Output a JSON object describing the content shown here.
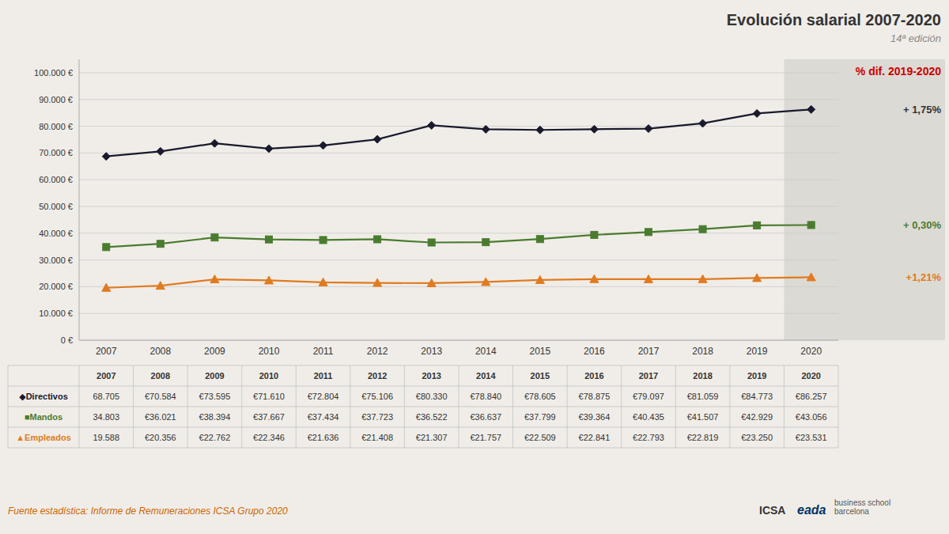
{
  "chart_data": {
    "type": "line",
    "title": "Evolución salarial 2007-2020",
    "subtitle": "14ª edición",
    "categories": [
      "2007",
      "2008",
      "2009",
      "2010",
      "2011",
      "2012",
      "2013",
      "2014",
      "2015",
      "2016",
      "2017",
      "2018",
      "2019",
      "2020"
    ],
    "series": [
      {
        "name": "◆Directivos",
        "color": "#1a1a2e",
        "marker": "diamond",
        "values": [
          68705,
          70584,
          73595,
          71610,
          72804,
          75106,
          80330,
          78840,
          78605,
          78875,
          79097,
          81059,
          84773,
          86257
        ],
        "value_labels": [
          "68.705",
          "€70.584",
          "€73.595",
          "€71.610",
          "€72.804",
          "€75.106",
          "€80.330",
          "€78.840",
          "€78.605",
          "€78.875",
          "€79.097",
          "€81.059",
          "€84.773",
          "€86.257"
        ]
      },
      {
        "name": "■Mandos",
        "color": "#4a7c2f",
        "marker": "square",
        "values": [
          34803,
          36021,
          38394,
          37667,
          37434,
          37723,
          36522,
          36637,
          37799,
          39364,
          40435,
          41507,
          42929,
          43056
        ],
        "value_labels": [
          "34.803",
          "€36.021",
          "€38.394",
          "€37.667",
          "€37.434",
          "€37.723",
          "€36.522",
          "€36.637",
          "€37.799",
          "€39.364",
          "€40.435",
          "€41.507",
          "€42.929",
          "€43.056"
        ]
      },
      {
        "name": "▲Empleados",
        "color": "#e07b20",
        "marker": "triangle",
        "values": [
          19588,
          20356,
          22762,
          22346,
          21636,
          21408,
          21307,
          21757,
          22509,
          22841,
          22793,
          22819,
          23250,
          23531
        ],
        "value_labels": [
          "19.588",
          "€20.356",
          "€22.762",
          "€22.346",
          "€21.636",
          "€21.408",
          "€21.307",
          "€21.757",
          "€22.509",
          "€22.841",
          "€22.793",
          "€22.819",
          "€23.250",
          "€23.531"
        ]
      }
    ],
    "ylim": [
      0,
      105000
    ],
    "yticks": [
      {
        "value": 0,
        "label": "0 €"
      },
      {
        "value": 10000,
        "label": "10.000 €"
      },
      {
        "value": 20000,
        "label": "20.000 €"
      },
      {
        "value": 30000,
        "label": "30.000 €"
      },
      {
        "value": 40000,
        "label": "40.000 €"
      },
      {
        "value": 50000,
        "label": "50.000 €"
      },
      {
        "value": 60000,
        "label": "60.000 €"
      },
      {
        "value": 70000,
        "label": "70.000 €"
      },
      {
        "value": 80000,
        "label": "80.000 €"
      },
      {
        "value": 90000,
        "label": "90.000 €"
      },
      {
        "value": 100000,
        "label": "100.000 €"
      }
    ],
    "grid": true,
    "annotations": [
      {
        "text": "% dif. 2019-2020",
        "color": "#cc0000"
      },
      {
        "text": "+ 1,75%",
        "color": "#333333"
      },
      {
        "text": "+ 0,30%",
        "color": "#4a7c2f"
      },
      {
        "text": "+1,21%",
        "color": "#e07b20"
      }
    ],
    "source": "Fuente estadística: Informe de Remuneraciones ICSA Grupo 2020",
    "logo": [
      "ICSA",
      "eada",
      "business school\nbarcelona"
    ]
  }
}
